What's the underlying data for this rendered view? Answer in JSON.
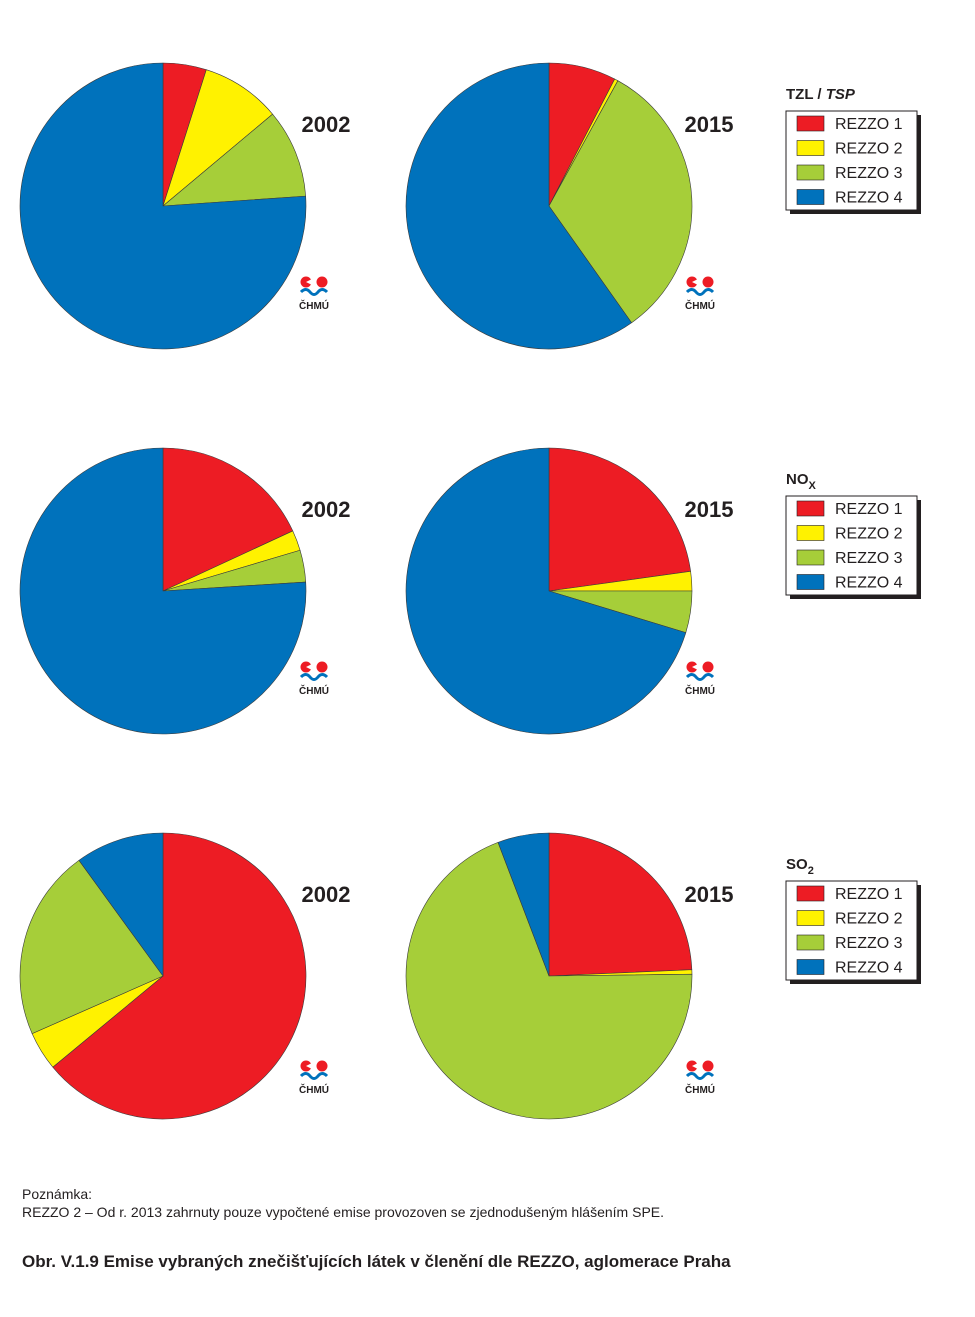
{
  "series_names": [
    "REZZO 1",
    "REZZO 2",
    "REZZO 3",
    "REZZO 4"
  ],
  "colors": [
    "#ed1c24",
    "#fff200",
    "#a6ce39",
    "#0072bc"
  ],
  "logo_text": "ČHMÚ",
  "note": {
    "title": "Poznámka:",
    "text": "REZZO 2 – Od r. 2013 zahrnuty pouze vypočtené emise provozoven se zjednodušeným hlášením SPE."
  },
  "caption": "Obr. V.1.9  Emise vybraných znečišťujících látek v členění dle REZZO, aglomerace Praha",
  "chart_data": [
    {
      "type": "pie",
      "pollutant": "TZL / TSP",
      "year": "2002",
      "categories": [
        "REZZO 1",
        "REZZO 2",
        "REZZO 3",
        "REZZO 4"
      ],
      "values": [
        4.9,
        9.0,
        10.0,
        76.1
      ]
    },
    {
      "type": "pie",
      "pollutant": "TZL / TSP",
      "year": "2015",
      "categories": [
        "REZZO 1",
        "REZZO 2",
        "REZZO 3",
        "REZZO 4"
      ],
      "values": [
        7.6,
        0.4,
        32.2,
        59.8
      ]
    },
    {
      "type": "pie",
      "pollutant": "NOX",
      "year": "2002",
      "categories": [
        "REZZO 1",
        "REZZO 2",
        "REZZO 3",
        "REZZO 4"
      ],
      "values": [
        18.1,
        2.3,
        3.6,
        76.0
      ]
    },
    {
      "type": "pie",
      "pollutant": "NOX",
      "year": "2015",
      "categories": [
        "REZZO 1",
        "REZZO 2",
        "REZZO 3",
        "REZZO 4"
      ],
      "values": [
        22.8,
        2.2,
        4.7,
        70.3
      ]
    },
    {
      "type": "pie",
      "pollutant": "SO2",
      "year": "2002",
      "categories": [
        "REZZO 1",
        "REZZO 2",
        "REZZO 3",
        "REZZO 4"
      ],
      "values": [
        64.0,
        4.4,
        21.6,
        10.0
      ]
    },
    {
      "type": "pie",
      "pollutant": "SO2",
      "year": "2015",
      "categories": [
        "REZZO 1",
        "REZZO 2",
        "REZZO 3",
        "REZZO 4"
      ],
      "values": [
        24.3,
        0.5,
        69.4,
        5.8
      ]
    }
  ]
}
